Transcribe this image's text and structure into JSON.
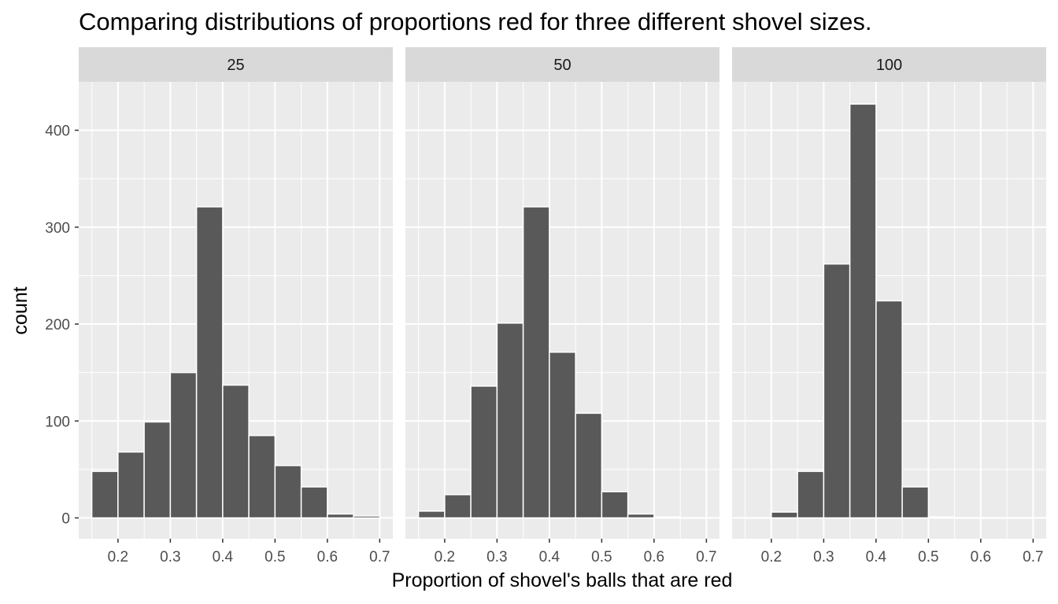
{
  "chart_data": {
    "type": "bar",
    "title": "Comparing distributions of proportions red for three different shovel sizes.",
    "xlabel": "Proportion of shovel's balls that are red",
    "ylabel": "count",
    "xlim": [
      0.125,
      0.725
    ],
    "ylim": [
      -21.5,
      450
    ],
    "x_ticks": [
      "0.2",
      "0.3",
      "0.4",
      "0.5",
      "0.6",
      "0.7"
    ],
    "y_ticks": [
      "0",
      "100",
      "200",
      "300",
      "400"
    ],
    "bin_width": 0.05,
    "bin_centers": [
      0.175,
      0.225,
      0.275,
      0.325,
      0.375,
      0.425,
      0.475,
      0.525,
      0.575,
      0.625,
      0.675
    ],
    "grid": true,
    "facets": [
      {
        "label": "25",
        "values": [
          48,
          68,
          99,
          150,
          321,
          137,
          85,
          54,
          32,
          4,
          2
        ]
      },
      {
        "label": "50",
        "values": [
          7,
          24,
          136,
          201,
          321,
          171,
          108,
          27,
          4,
          1,
          0
        ]
      },
      {
        "label": "100",
        "values": [
          0,
          6,
          48,
          262,
          427,
          224,
          32,
          1,
          0,
          0,
          0
        ]
      }
    ],
    "colors": {
      "bar_fill": "#595959",
      "bar_outline": "#ffffff",
      "panel_bg": "#ebebeb",
      "strip_bg": "#d9d9d9",
      "grid": "#ffffff",
      "tick": "#333333"
    }
  }
}
